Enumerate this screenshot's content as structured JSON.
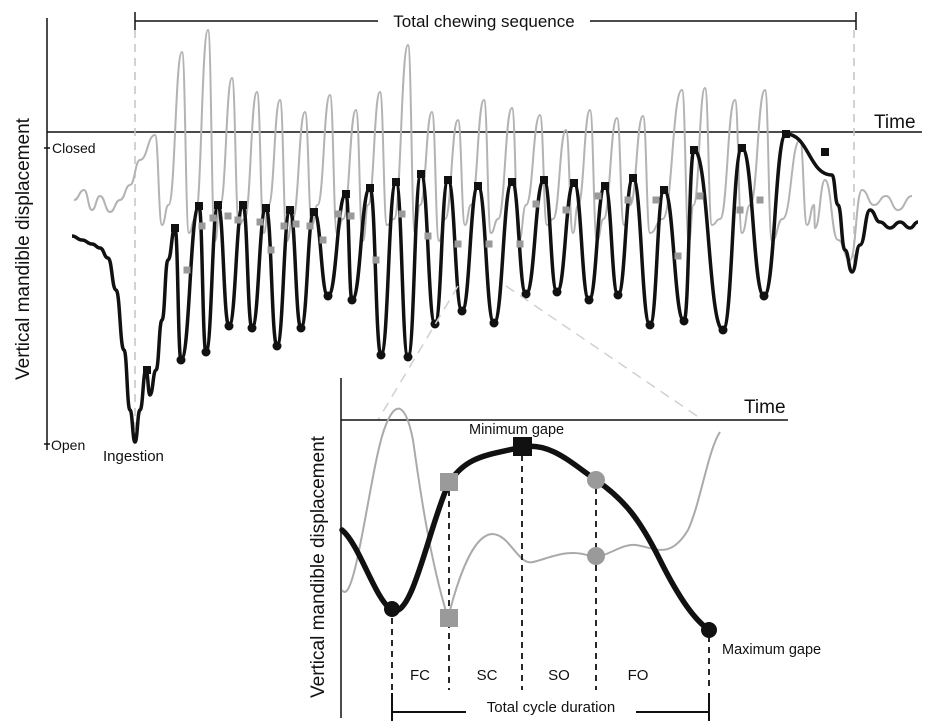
{
  "main": {
    "y_axis_label": "Vertical mandible displacement",
    "time_label": "Time",
    "closed_label": "Closed",
    "open_label": "Open",
    "ingestion_label": "Ingestion",
    "sequence_label": "Total chewing sequence"
  },
  "inset": {
    "y_axis_label": "Vertical mandible displacement",
    "time_label": "Time",
    "minimum_gape_label": "Minimum gape",
    "maximum_gape_label": "Maximum gape",
    "phases": [
      "FC",
      "SC",
      "SO",
      "FO"
    ],
    "cycle_label": "Total cycle duration"
  },
  "colors": {
    "trace_dark": "#111111",
    "trace_light": "#b3b3b3",
    "marker_light": "#9a9a9a",
    "dashed": "#c4c4c4"
  }
}
